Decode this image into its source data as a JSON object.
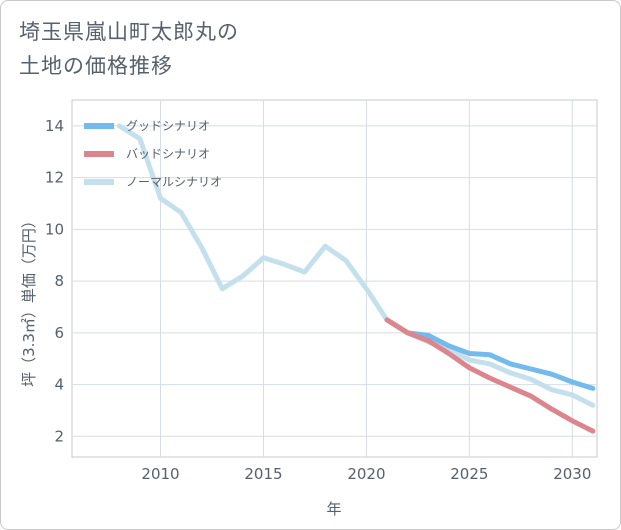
{
  "title_lines": [
    "埼玉県嵐山町太郎丸の",
    "土地の価格推移"
  ],
  "chart_data": {
    "type": "line",
    "xlabel": "年",
    "ylabel": "坪（3.3㎡）単価（万円）",
    "xlim": [
      2005.7,
      2031.2
    ],
    "ylim": [
      1.2,
      15.0
    ],
    "x_ticks": [
      2010,
      2015,
      2020,
      2025,
      2030
    ],
    "y_ticks": [
      2,
      4,
      6,
      8,
      10,
      12,
      14
    ],
    "grid": true,
    "legend_position": "top-left",
    "series": [
      {
        "name": "グッドシナリオ",
        "color": "#72bbec",
        "x": [
          2021,
          2022,
          2023,
          2024,
          2025,
          2026,
          2027,
          2028,
          2029,
          2030,
          2031
        ],
        "values": [
          6.5,
          6.0,
          5.9,
          5.5,
          5.2,
          5.15,
          4.8,
          4.6,
          4.4,
          4.1,
          3.85
        ]
      },
      {
        "name": "バッドシナリオ",
        "color": "#dd858c",
        "x": [
          2021,
          2022,
          2023,
          2024,
          2025,
          2026,
          2027,
          2028,
          2029,
          2030,
          2031
        ],
        "values": [
          6.5,
          6.0,
          5.7,
          5.2,
          4.65,
          4.25,
          3.9,
          3.55,
          3.05,
          2.6,
          2.2
        ]
      },
      {
        "name": "ノーマルシナリオ",
        "color": "#c3e0ec",
        "x": [
          2008,
          2009,
          2010,
          2011,
          2012,
          2013,
          2014,
          2015,
          2016,
          2017,
          2018,
          2019,
          2020,
          2021,
          2022,
          2023,
          2024,
          2025,
          2026,
          2027,
          2028,
          2029,
          2030,
          2031
        ],
        "values": [
          14.0,
          13.5,
          11.2,
          10.65,
          9.3,
          7.7,
          8.2,
          8.9,
          8.65,
          8.35,
          9.35,
          8.8,
          7.7,
          6.5,
          6.0,
          5.65,
          5.35,
          4.95,
          4.8,
          4.45,
          4.2,
          3.8,
          3.6,
          3.2
        ]
      }
    ]
  }
}
